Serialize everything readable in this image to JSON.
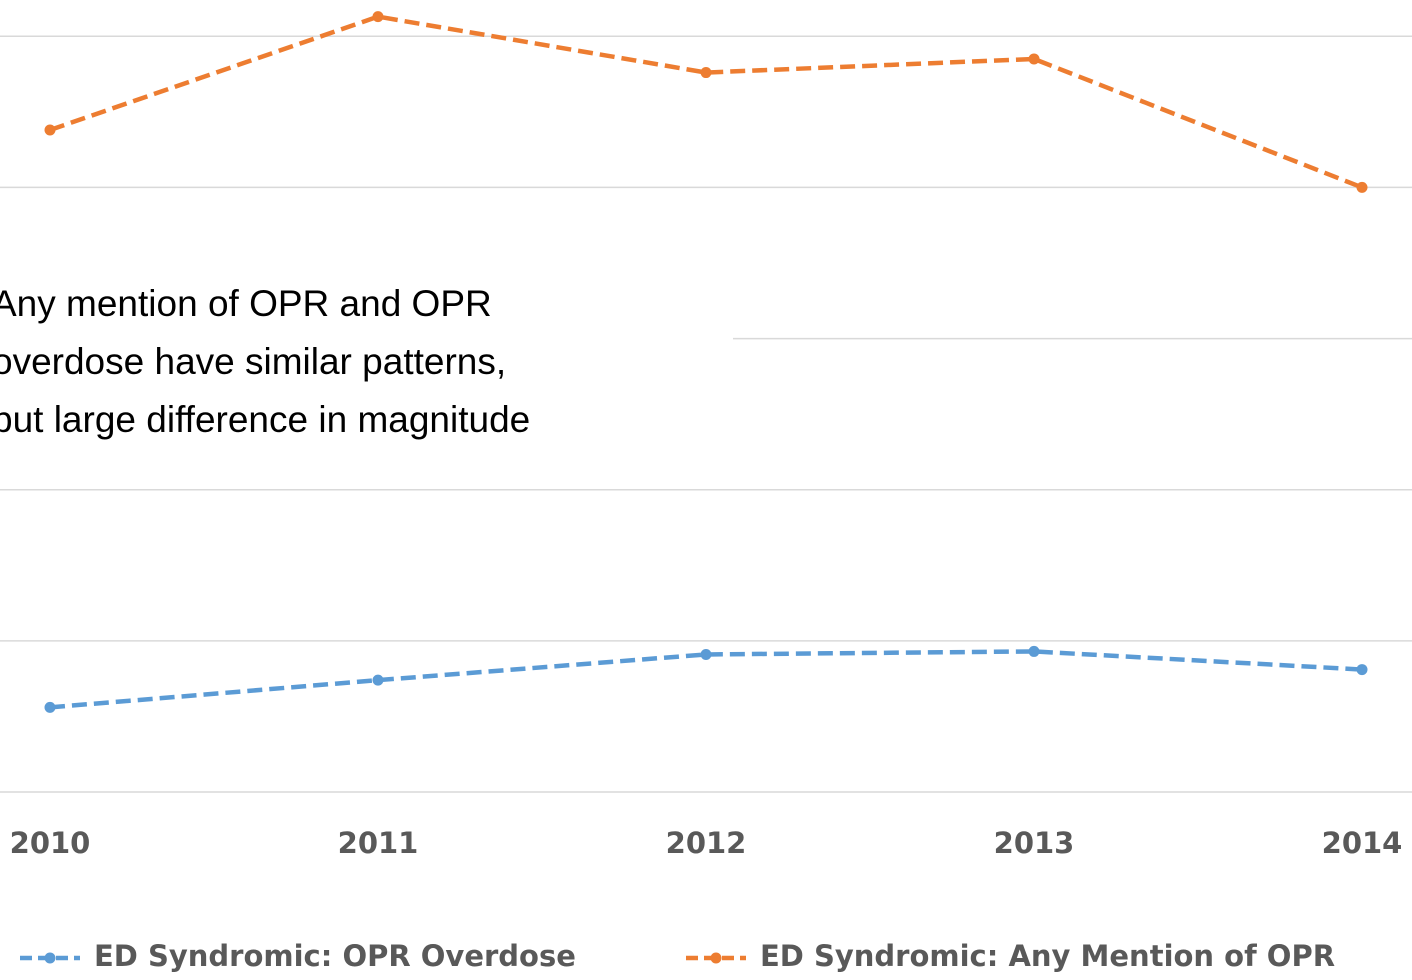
{
  "chart_data": {
    "type": "line",
    "categories": [
      "2010",
      "2011",
      "2012",
      "2013",
      "2014"
    ],
    "series": [
      {
        "name": "ED Syndromic: OPR Overdose",
        "color": "#5b9bd5",
        "values": [
          0.56,
          0.74,
          0.91,
          0.93,
          0.81
        ]
      },
      {
        "name": "ED Syndromic: Any Mention of OPR",
        "color": "#ed7d31",
        "values": [
          4.38,
          5.13,
          4.76,
          4.85,
          4.0
        ]
      }
    ],
    "ylim": [
      0,
      5.24
    ],
    "yticks": [
      0,
      1,
      2,
      3,
      4,
      5
    ],
    "grid": true,
    "legend": "bottom",
    "annotation": [
      "Any mention of OPR and OPR",
      "overdose have similar patterns,",
      "but large difference in magnitude"
    ]
  }
}
